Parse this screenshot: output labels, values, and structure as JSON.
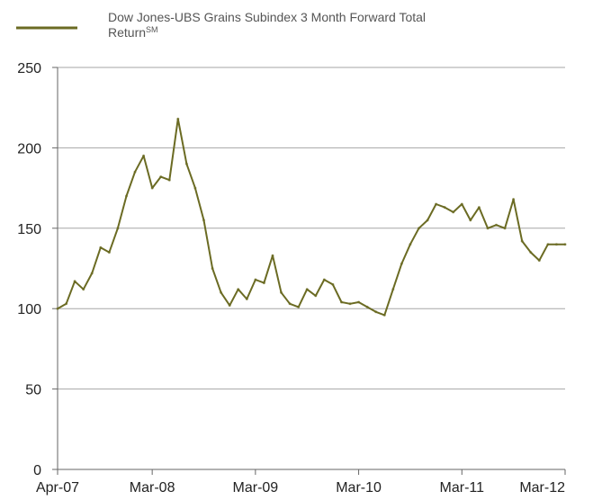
{
  "chart_data": {
    "type": "line",
    "title": "",
    "xlabel": "",
    "ylabel": "",
    "legend": {
      "placement": "top-left",
      "text_main": "Dow Jones-UBS Grains Subindex 3 Month Forward Total",
      "text_line2": "Return",
      "superscript": "SM"
    },
    "colors": {
      "series": "#6b6b23",
      "axis": "#666666",
      "grid": "#a6a6a6",
      "text": "#222222",
      "legend_text": "#555555"
    },
    "ylim": [
      0,
      250
    ],
    "yticks": [
      0,
      50,
      100,
      150,
      200,
      250
    ],
    "ytick_labels": [
      "0",
      "50",
      "100",
      "150",
      "200",
      "250"
    ],
    "grid": "horizontal",
    "xlim": [
      "2007-04",
      "2012-03"
    ],
    "xtick_labels": [
      "Apr-07",
      "Mar-08",
      "Mar-09",
      "Mar-10",
      "Mar-11",
      "Mar-12"
    ],
    "xtick_dates": [
      "2007-04",
      "2008-03",
      "2009-03",
      "2010-03",
      "2011-03",
      "2012-03"
    ],
    "series": [
      {
        "name": "Dow Jones-UBS Grains Subindex 3 Month Forward Total Return",
        "x": [
          "2007-04",
          "2007-05",
          "2007-06",
          "2007-07",
          "2007-08",
          "2007-09",
          "2007-10",
          "2007-11",
          "2007-12",
          "2008-01",
          "2008-02",
          "2008-03",
          "2008-04",
          "2008-05",
          "2008-06",
          "2008-07",
          "2008-08",
          "2008-09",
          "2008-10",
          "2008-11",
          "2008-12",
          "2009-01",
          "2009-02",
          "2009-03",
          "2009-04",
          "2009-05",
          "2009-06",
          "2009-07",
          "2009-08",
          "2009-09",
          "2009-10",
          "2009-11",
          "2009-12",
          "2010-01",
          "2010-02",
          "2010-03",
          "2010-04",
          "2010-05",
          "2010-06",
          "2010-07",
          "2010-08",
          "2010-09",
          "2010-10",
          "2010-11",
          "2010-12",
          "2011-01",
          "2011-02",
          "2011-03",
          "2011-04",
          "2011-05",
          "2011-06",
          "2011-07",
          "2011-08",
          "2011-09",
          "2011-10",
          "2011-11",
          "2011-12",
          "2012-01",
          "2012-02",
          "2012-03"
        ],
        "values": [
          100,
          103,
          117,
          112,
          122,
          138,
          135,
          150,
          170,
          185,
          195,
          175,
          182,
          180,
          218,
          190,
          175,
          155,
          125,
          110,
          102,
          112,
          106,
          118,
          116,
          133,
          110,
          103,
          101,
          112,
          108,
          118,
          115,
          104,
          103,
          104,
          101,
          98,
          96,
          112,
          128,
          140,
          150,
          155,
          165,
          163,
          160,
          165,
          155,
          163,
          150,
          152,
          150,
          168,
          142,
          135,
          130,
          140,
          140,
          140
        ]
      }
    ]
  }
}
